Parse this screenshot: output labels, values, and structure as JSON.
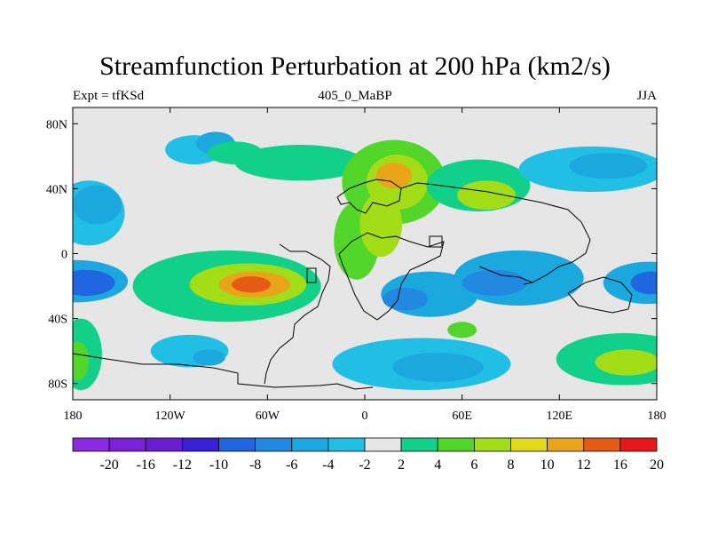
{
  "chart_data": {
    "type": "heatmap",
    "title": "Streamfunction Perturbation at 200 hPa (km2/s)",
    "left_subtitle": "Expt = tfKSd",
    "center_subtitle": "405_0_MaBP",
    "right_subtitle": "JJA",
    "x_ticks": [
      {
        "value": -180,
        "label": "180"
      },
      {
        "value": -120,
        "label": "120W"
      },
      {
        "value": -60,
        "label": "60W"
      },
      {
        "value": 0,
        "label": "0"
      },
      {
        "value": 60,
        "label": "60E"
      },
      {
        "value": 120,
        "label": "120E"
      },
      {
        "value": 180,
        "label": "180"
      }
    ],
    "y_ticks": [
      {
        "value": 80,
        "label": "80N"
      },
      {
        "value": 40,
        "label": "40N"
      },
      {
        "value": 0,
        "label": "0"
      },
      {
        "value": -40,
        "label": "40S"
      },
      {
        "value": -80,
        "label": "80S"
      }
    ],
    "xlim": [
      -180,
      180
    ],
    "ylim": [
      -90,
      90
    ],
    "levels": [
      -20,
      -16,
      -12,
      -10,
      -8,
      -6,
      -4,
      -2,
      2,
      4,
      6,
      8,
      10,
      12,
      16,
      20
    ],
    "level_labels": [
      "-20",
      "-16",
      "-12",
      "-10",
      "-8",
      "-6",
      "-4",
      "-2",
      "2",
      "4",
      "6",
      "8",
      "10",
      "12",
      "16",
      "20"
    ],
    "colors": [
      "#8a2be2",
      "#7b22d8",
      "#6a1dd0",
      "#3a1fd6",
      "#1f66e0",
      "#2289e0",
      "#1aa8df",
      "#20bfe3",
      "#e6e6e6",
      "#11d08a",
      "#52d62a",
      "#a2dd18",
      "#e2d91a",
      "#e8a51a",
      "#e55a14",
      "#e8181a"
    ],
    "features": [
      {
        "lon": -170,
        "lat": 25,
        "rx": 22,
        "ry": 20,
        "value": -2.5
      },
      {
        "lon": -165,
        "lat": 30,
        "rx": 15,
        "ry": 12,
        "value": -4.5
      },
      {
        "lon": -105,
        "lat": 64,
        "rx": 18,
        "ry": 9,
        "value": -3
      },
      {
        "lon": -92,
        "lat": 68,
        "rx": 12,
        "ry": 7,
        "value": -5
      },
      {
        "lon": -178,
        "lat": -17,
        "rx": 32,
        "ry": 13,
        "value": -5
      },
      {
        "lon": -172,
        "lat": -18,
        "rx": 18,
        "ry": 8,
        "value": -8.5
      },
      {
        "lon": -85,
        "lat": -20,
        "rx": 58,
        "ry": 22,
        "value": 3.5
      },
      {
        "lon": -72,
        "lat": -19,
        "rx": 36,
        "ry": 13,
        "value": 7.5
      },
      {
        "lon": -68,
        "lat": -19,
        "rx": 22,
        "ry": 8,
        "value": 11
      },
      {
        "lon": -70,
        "lat": -19,
        "rx": 12,
        "ry": 5,
        "value": 13
      },
      {
        "lon": -175,
        "lat": -62,
        "rx": 13,
        "ry": 22,
        "value": 3.5
      },
      {
        "lon": -177,
        "lat": -66,
        "rx": 7,
        "ry": 12,
        "value": 5.5
      },
      {
        "lon": -108,
        "lat": -60,
        "rx": 24,
        "ry": 10,
        "value": -3
      },
      {
        "lon": -96,
        "lat": -64,
        "rx": 10,
        "ry": 5,
        "value": -5
      },
      {
        "lon": -40,
        "lat": 56,
        "rx": 40,
        "ry": 11,
        "value": 3
      },
      {
        "lon": -80,
        "lat": 62,
        "rx": 17,
        "ry": 7,
        "value": 3
      },
      {
        "lon": 18,
        "lat": 44,
        "rx": 32,
        "ry": 26,
        "value": 4
      },
      {
        "lon": 20,
        "lat": 44,
        "rx": 19,
        "ry": 17,
        "value": 7
      },
      {
        "lon": 18,
        "lat": 48,
        "rx": 11,
        "ry": 8,
        "value": 11
      },
      {
        "lon": -5,
        "lat": 8,
        "rx": 14,
        "ry": 24,
        "value": 4
      },
      {
        "lon": 10,
        "lat": 18,
        "rx": 13,
        "ry": 20,
        "value": 6
      },
      {
        "lon": 70,
        "lat": 42,
        "rx": 32,
        "ry": 16,
        "value": 3.5
      },
      {
        "lon": 75,
        "lat": 36,
        "rx": 18,
        "ry": 9,
        "value": 7
      },
      {
        "lon": 140,
        "lat": 52,
        "rx": 45,
        "ry": 14,
        "value": -3
      },
      {
        "lon": 150,
        "lat": 54,
        "rx": 24,
        "ry": 8,
        "value": -5
      },
      {
        "lon": 40,
        "lat": -25,
        "rx": 30,
        "ry": 14,
        "value": -4
      },
      {
        "lon": 25,
        "lat": -28,
        "rx": 14,
        "ry": 7,
        "value": -6
      },
      {
        "lon": 95,
        "lat": -15,
        "rx": 40,
        "ry": 17,
        "value": -4
      },
      {
        "lon": 80,
        "lat": -18,
        "rx": 20,
        "ry": 8,
        "value": -6
      },
      {
        "lon": 175,
        "lat": -18,
        "rx": 28,
        "ry": 13,
        "value": -5
      },
      {
        "lon": 176,
        "lat": -18,
        "rx": 12,
        "ry": 7,
        "value": -8.5
      },
      {
        "lon": 35,
        "lat": -68,
        "rx": 55,
        "ry": 16,
        "value": -3
      },
      {
        "lon": 45,
        "lat": -70,
        "rx": 28,
        "ry": 9,
        "value": -5
      },
      {
        "lon": 160,
        "lat": -65,
        "rx": 42,
        "ry": 16,
        "value": 3.5
      },
      {
        "lon": 162,
        "lat": -67,
        "rx": 20,
        "ry": 8,
        "value": 7
      },
      {
        "lon": 60,
        "lat": -47,
        "rx": 9,
        "ry": 5,
        "value": 4.5
      }
    ]
  }
}
